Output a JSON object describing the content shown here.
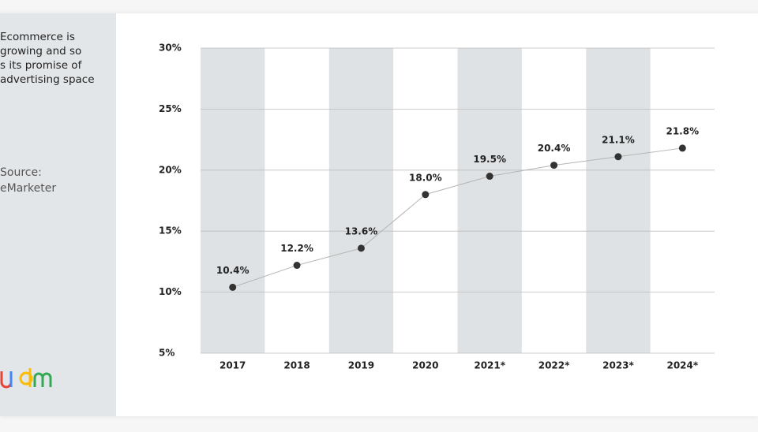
{
  "sidebar": {
    "lines": [
      "Ecommerce is",
      "growing and so",
      "s its promise of",
      "advertising space"
    ],
    "source": [
      "Source:",
      "eMarketer"
    ]
  },
  "chart_data": {
    "type": "line",
    "categories": [
      "2017",
      "2018",
      "2019",
      "2020",
      "2021*",
      "2022*",
      "2023*",
      "2024*"
    ],
    "values": [
      10.4,
      12.2,
      13.6,
      18.0,
      19.5,
      20.4,
      21.1,
      21.8
    ],
    "value_labels": [
      "10.4%",
      "12.2%",
      "13.6%",
      "18.0%",
      "19.5%",
      "20.4%",
      "21.1%",
      "21.8%"
    ],
    "color": "#333333",
    "line_color": "#b5b5b5",
    "band_color": "#dfe2e4",
    "ylim": [
      5,
      30
    ],
    "yticks": [
      {
        "value": 5,
        "label": "5%"
      },
      {
        "value": 10,
        "label": "10%"
      },
      {
        "value": 15,
        "label": "15%"
      },
      {
        "value": 20,
        "label": "20%"
      },
      {
        "value": 25,
        "label": "25%"
      },
      {
        "value": 30,
        "label": "30%"
      }
    ],
    "grid": true
  }
}
